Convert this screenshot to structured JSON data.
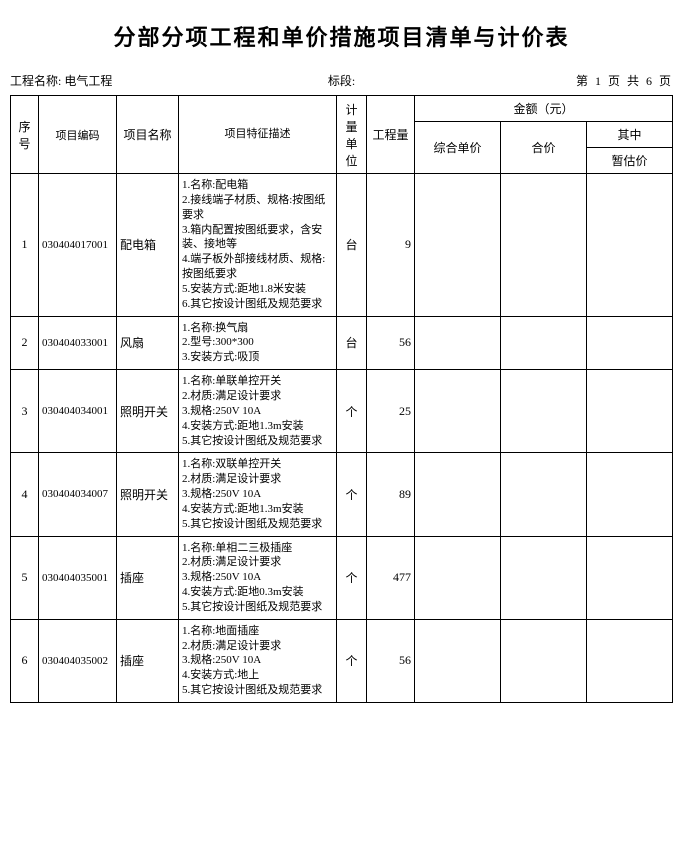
{
  "title": "分部分项工程和单价措施项目清单与计价表",
  "meta": {
    "project_label": "工程名称:",
    "project_name": "电气工程",
    "section_label": "标段:",
    "page_text": "第 1 页 共 6 页"
  },
  "headers": {
    "seq": "序号",
    "code": "项目编码",
    "name": "项目名称",
    "desc": "项目特征描述",
    "unit": "计量单位",
    "qty": "工程量",
    "amount_group": "金额（元）",
    "unit_price": "综合单价",
    "total_price": "合价",
    "sub_group": "其中",
    "estimate": "暂估价"
  },
  "rows": [
    {
      "seq": "1",
      "code": "030404017001",
      "name": "配电箱",
      "desc": "1.名称:配电箱\n2.接线端子材质、规格:按图纸要求\n3.箱内配置按图纸要求，含安装、接地等\n4.端子板外部接线材质、规格:按图纸要求\n5.安装方式:距地1.8米安装\n6.其它按设计图纸及规范要求",
      "unit": "台",
      "qty": "9"
    },
    {
      "seq": "2",
      "code": "030404033001",
      "name": "风扇",
      "desc": "1.名称:换气扇\n2.型号:300*300\n3.安装方式:吸顶",
      "unit": "台",
      "qty": "56"
    },
    {
      "seq": "3",
      "code": "030404034001",
      "name": "照明开关",
      "desc": "1.名称:单联单控开关\n2.材质:满足设计要求\n3.规格:250V 10A\n4.安装方式:距地1.3m安装\n5.其它按设计图纸及规范要求",
      "unit": "个",
      "qty": "25"
    },
    {
      "seq": "4",
      "code": "030404034007",
      "name": "照明开关",
      "desc": "1.名称:双联单控开关\n2.材质:满足设计要求\n3.规格:250V 10A\n4.安装方式:距地1.3m安装\n5.其它按设计图纸及规范要求",
      "unit": "个",
      "qty": "89"
    },
    {
      "seq": "5",
      "code": "030404035001",
      "name": "插座",
      "desc": "1.名称:单相二三极插座\n2.材质:满足设计要求\n3.规格:250V 10A\n4.安装方式:距地0.3m安装\n5.其它按设计图纸及规范要求",
      "unit": "个",
      "qty": "477"
    },
    {
      "seq": "6",
      "code": "030404035002",
      "name": "插座",
      "desc": "1.名称:地面插座\n2.材质:满足设计要求\n3.规格:250V 10A\n4.安装方式:地上\n5.其它按设计图纸及规范要求",
      "unit": "个",
      "qty": "56"
    }
  ]
}
